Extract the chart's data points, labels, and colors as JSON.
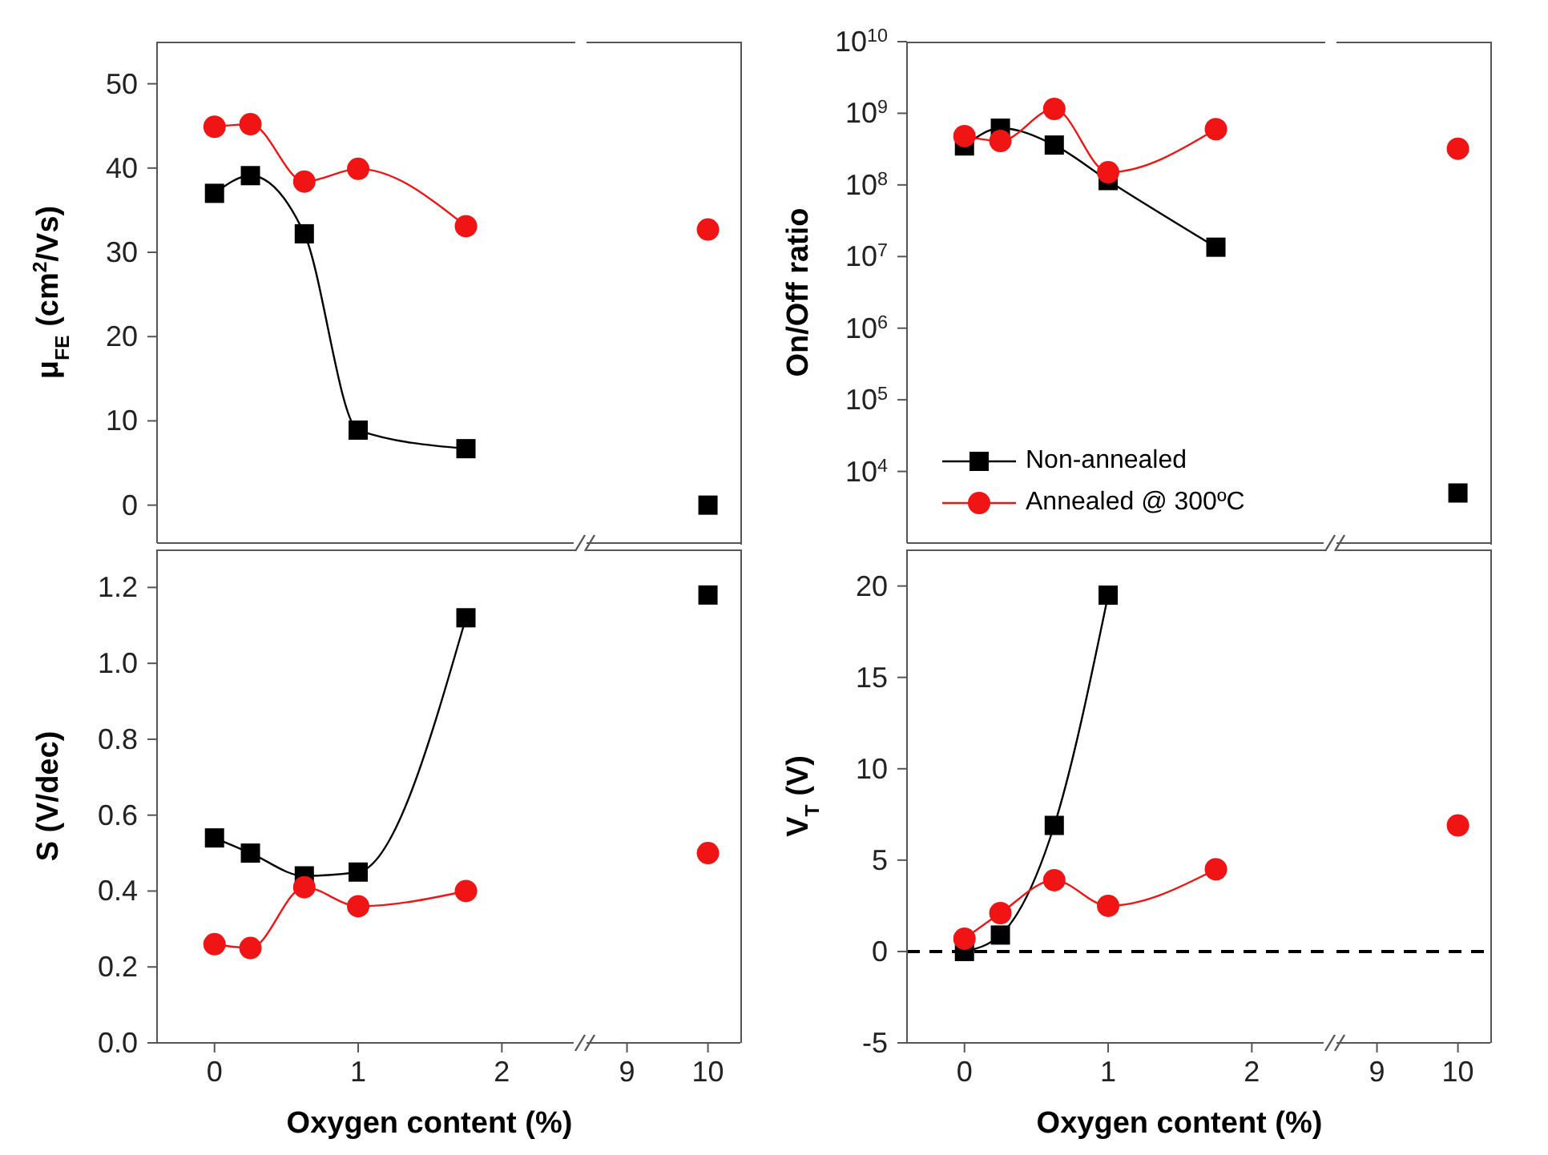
{
  "chart_data": [
    {
      "type": "line",
      "ylabel": "μ$_{FE}$ (cm$^{2}$/Vs)",
      "xlim": [
        -0.4,
        2.5
      ],
      "xticks": [
        0,
        1,
        2
      ],
      "ylim": [
        -4.5,
        55
      ],
      "yticks": [
        0,
        10,
        20,
        30,
        40,
        50
      ],
      "tick_labels": "y",
      "line_style": "solid",
      "series": [
        {
          "color": "#000000",
          "marker": "square",
          "x": [
            0,
            0.25,
            0.625,
            1,
            1.75
          ],
          "values": [
            37.0,
            39.1,
            32.2,
            8.9,
            6.7
          ]
        },
        {
          "color": "#f01414",
          "marker": "circle",
          "x": [
            0,
            0.25,
            0.625,
            1,
            1.75
          ],
          "values": [
            44.9,
            45.2,
            38.4,
            39.9,
            33.1
          ]
        }
      ]
    },
    {
      "type": "line",
      "xlim": [
        8.5,
        10.4
      ],
      "xticks": [
        9,
        10
      ],
      "ylim": [
        -4.5,
        55
      ],
      "tick_labels": false,
      "line_style": "solid",
      "series": [
        {
          "color": "#000000",
          "marker": "square",
          "x": [
            10
          ],
          "values": [
            0
          ]
        },
        {
          "color": "#f01414",
          "marker": "circle",
          "x": [
            10
          ],
          "values": [
            32.7
          ]
        }
      ]
    },
    {
      "type": "line",
      "ylabel": "On/Off ratio",
      "xlim": [
        -0.4,
        2.5
      ],
      "xticks": [
        0,
        1,
        2
      ],
      "log": "y",
      "ylim": [
        1000,
        10000000000
      ],
      "yticks": [
        {
          "value": 10000,
          "label": "10$^{4}$"
        },
        {
          "value": 100000,
          "label": "10$^{5}$"
        },
        {
          "value": 1000000,
          "label": "10$^{6}$"
        },
        {
          "value": 10000000,
          "label": "10$^{7}$"
        },
        {
          "value": 100000000,
          "label": "10$^{8}$"
        },
        {
          "value": 1000000000,
          "label": "10$^{9}$"
        },
        {
          "value": 10000000000,
          "label": "10$^{10}$"
        }
      ],
      "tick_labels": "y",
      "line_style": "solid",
      "legend": "bottom left",
      "series": [
        {
          "name": "Non-annealed",
          "color": "#000000",
          "marker": "square",
          "x": [
            0,
            0.25,
            0.625,
            1,
            1.75
          ],
          "values": [
            350000000,
            620000000,
            360000000,
            115000000,
            13500000
          ]
        },
        {
          "name": "Annealed @ 300ºC",
          "color": "#f01414",
          "marker": "circle",
          "x": [
            0,
            0.25,
            0.625,
            1,
            1.75
          ],
          "values": [
            480000000,
            410000000,
            1150000000,
            150000000,
            600000000
          ]
        }
      ]
    },
    {
      "type": "line",
      "xlim": [
        8.5,
        10.4
      ],
      "xticks": [
        9,
        10
      ],
      "log": "y",
      "ylim": [
        1000,
        10000000000
      ],
      "tick_labels": false,
      "line_style": "solid",
      "series": [
        {
          "color": "#000000",
          "marker": "square",
          "x": [
            10
          ],
          "values": [
            5000
          ]
        },
        {
          "color": "#f01414",
          "marker": "circle",
          "x": [
            10
          ],
          "values": [
            320000000
          ]
        }
      ]
    },
    {
      "type": "line",
      "xlabel": "Oxygen content (%)",
      "ylabel": "S (V/dec)",
      "xlim": [
        -0.4,
        2.5
      ],
      "xticks": [
        0,
        1,
        2
      ],
      "ylim": [
        0,
        1.3
      ],
      "yticks": [
        {
          "value": 0,
          "label": "0.0"
        },
        0.2,
        0.4,
        0.6,
        0.8,
        {
          "value": 1,
          "label": "1.0"
        },
        1.2
      ],
      "line_style": "solid",
      "series": [
        {
          "color": "#000000",
          "marker": "square",
          "x": [
            0,
            0.25,
            0.625,
            1,
            1.75
          ],
          "values": [
            0.54,
            0.5,
            0.44,
            0.45,
            1.12
          ]
        },
        {
          "color": "#f01414",
          "marker": "circle",
          "x": [
            0,
            0.25,
            0.625,
            1,
            1.75
          ],
          "values": [
            0.26,
            0.25,
            0.41,
            0.36,
            0.4
          ]
        }
      ]
    },
    {
      "type": "line",
      "xlim": [
        8.5,
        10.4
      ],
      "xticks": [
        9,
        10
      ],
      "ylim": [
        0,
        1.3
      ],
      "tick_labels": "x",
      "line_style": "solid",
      "series": [
        {
          "color": "#000000",
          "marker": "square",
          "x": [
            10
          ],
          "values": [
            1.18
          ]
        },
        {
          "color": "#f01414",
          "marker": "circle",
          "x": [
            10
          ],
          "values": [
            0.5
          ]
        }
      ]
    },
    {
      "type": "line",
      "xlabel": "Oxygen content (%)",
      "ylabel": "V$_{T}$ (V)",
      "xlim": [
        -0.4,
        2.5
      ],
      "xticks": [
        0,
        1,
        2
      ],
      "ylim": [
        -5,
        22
      ],
      "yticks": [
        -5,
        0,
        5,
        10,
        15,
        20
      ],
      "line_style": "solid",
      "ref_lines": [
        {
          "axis": "y",
          "value": 0,
          "color": "#000000",
          "line_style": "dashed"
        }
      ],
      "series": [
        {
          "color": "#000000",
          "marker": "square",
          "x": [
            0,
            0.25,
            0.625,
            1
          ],
          "values": [
            0,
            0.9,
            6.9,
            19.5
          ]
        },
        {
          "color": "#f01414",
          "marker": "circle",
          "x": [
            0,
            0.25,
            0.625,
            1,
            1.75
          ],
          "values": [
            0.7,
            2.1,
            3.9,
            2.5,
            4.5
          ]
        }
      ]
    },
    {
      "type": "line",
      "xlim": [
        8.5,
        10.4
      ],
      "xticks": [
        9,
        10
      ],
      "ylim": [
        -5,
        22
      ],
      "tick_labels": "x",
      "line_style": "solid",
      "ref_lines": [
        {
          "axis": "y",
          "value": 0,
          "color": "#000000",
          "line_style": "dashed"
        }
      ],
      "series": [
        {
          "color": "#f01414",
          "marker": "circle",
          "x": [
            10
          ],
          "values": [
            6.9
          ]
        }
      ]
    }
  ]
}
